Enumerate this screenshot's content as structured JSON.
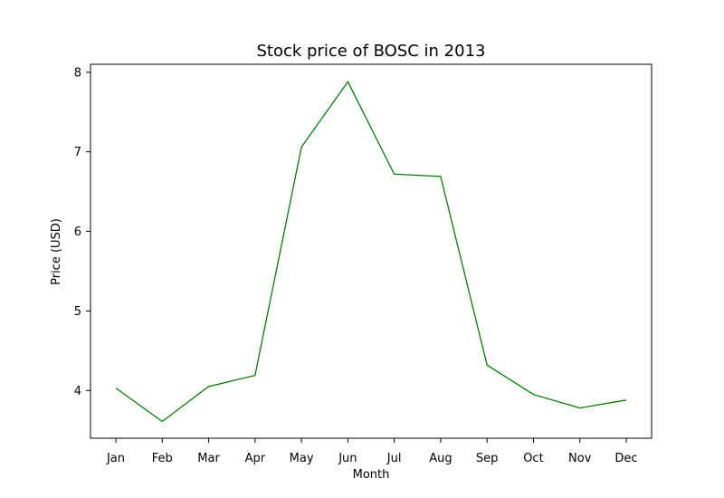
{
  "chart_data": {
    "type": "line",
    "title": "Stock price of BOSC in 2013",
    "xlabel": "Month",
    "ylabel": "Price (USD)",
    "categories": [
      "Jan",
      "Feb",
      "Mar",
      "Apr",
      "May",
      "Jun",
      "Jul",
      "Aug",
      "Sep",
      "Oct",
      "Nov",
      "Dec"
    ],
    "series": [
      {
        "values": [
          4.03,
          3.61,
          4.05,
          4.19,
          7.06,
          7.88,
          6.72,
          6.69,
          4.32,
          3.95,
          3.78,
          3.88
        ],
        "color": "#008000"
      }
    ],
    "ylim": [
      3.4,
      8.1
    ],
    "yticks": [
      4,
      5,
      6,
      7,
      8
    ],
    "grid": false,
    "legend": "none"
  }
}
